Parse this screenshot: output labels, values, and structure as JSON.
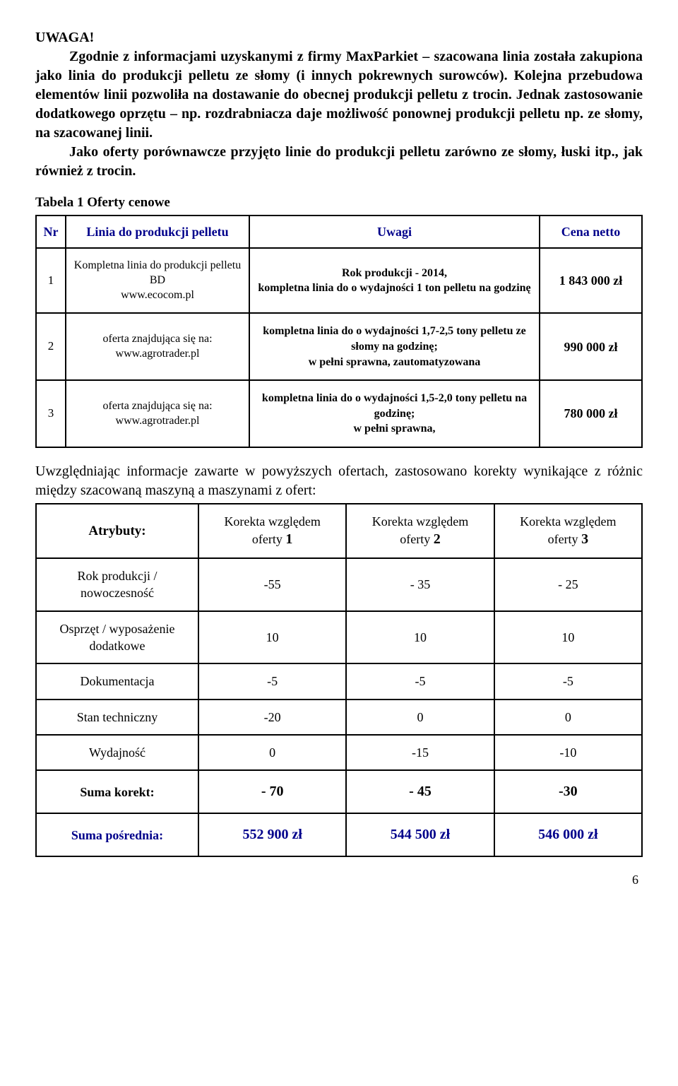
{
  "heading": "UWAGA!",
  "para1": "Zgodnie z informacjami uzyskanymi z firmy MaxParkiet – szacowana linia została zakupiona jako linia do produkcji pelletu ze słomy (i innych pokrewnych surowców). Kolejna przebudowa elementów linii pozwoliła na dostawanie do obecnej produkcji pelletu z trocin. Jednak zastosowanie dodatkowego oprzętu – np. rozdrabniacza daje możliwość ponownej produkcji pelletu np. ze słomy, na szacowanej linii.",
  "para2": "Jako oferty porównawcze przyjęto linie do produkcji pelletu zarówno ze słomy, łuski itp., jak również z trocin.",
  "table1": {
    "caption": "Tabela 1   Oferty cenowe",
    "header": {
      "nr": "Nr",
      "desc": "Linia do produkcji pelletu",
      "remarks": "Uwagi",
      "price": "Cena netto"
    },
    "rows": [
      {
        "nr": "1",
        "desc": "Kompletna linia do produkcji pelletu BD\nwww.ecocom.pl",
        "remarks": "Rok produkcji - 2014,\nkompletna linia do o wydajności 1 ton pelletu na godzinę",
        "price": "1 843 000 zł"
      },
      {
        "nr": "2",
        "desc": "oferta znajdująca się na:\nwww.agrotrader.pl",
        "remarks": "kompletna linia do o wydajności 1,7-2,5 tony pelletu ze słomy na godzinę;\nw pełni sprawna, zautomatyzowana",
        "price": "990 000 zł"
      },
      {
        "nr": "3",
        "desc": "oferta znajdująca się na:\nwww.agrotrader.pl",
        "remarks": "kompletna linia do o wydajności 1,5-2,0 tony pelletu  na godzinę;\nw pełni sprawna,",
        "price": "780 000 zł"
      }
    ]
  },
  "para3": "Uwzględniając informacje zawarte w powyższych ofertach, zastosowano korekty wynikające z różnic między szacowaną maszyną a maszynami z ofert:",
  "table2": {
    "header": {
      "attr": "Atrybuty:",
      "c1a": "Korekta względem",
      "c1b": "oferty ",
      "c1n": "1",
      "c2a": "Korekta względem",
      "c2b": "oferty ",
      "c2n": "2",
      "c3a": "Korekta względem",
      "c3b": "oferty ",
      "c3n": "3"
    },
    "rows": [
      {
        "attr": "Rok produkcji / nowoczesność",
        "v1": "-55",
        "v2": "- 35",
        "v3": "- 25"
      },
      {
        "attr": "Osprzęt / wyposażenie dodatkowe",
        "v1": "10",
        "v2": "10",
        "v3": "10"
      },
      {
        "attr": "Dokumentacja",
        "v1": "-5",
        "v2": "-5",
        "v3": "-5"
      },
      {
        "attr": "Stan techniczny",
        "v1": "-20",
        "v2": "0",
        "v3": "0"
      },
      {
        "attr": "Wydajność",
        "v1": "0",
        "v2": "-15",
        "v3": "-10"
      }
    ],
    "sum_row": {
      "attr": "Suma korekt:",
      "v1": "- 70",
      "v2": "- 45",
      "v3": "-30"
    },
    "final_row": {
      "attr": "Suma pośrednia:",
      "v1": "552 900 zł",
      "v2": "544 500 zł",
      "v3": "546 000 zł"
    }
  },
  "page_number": "6"
}
